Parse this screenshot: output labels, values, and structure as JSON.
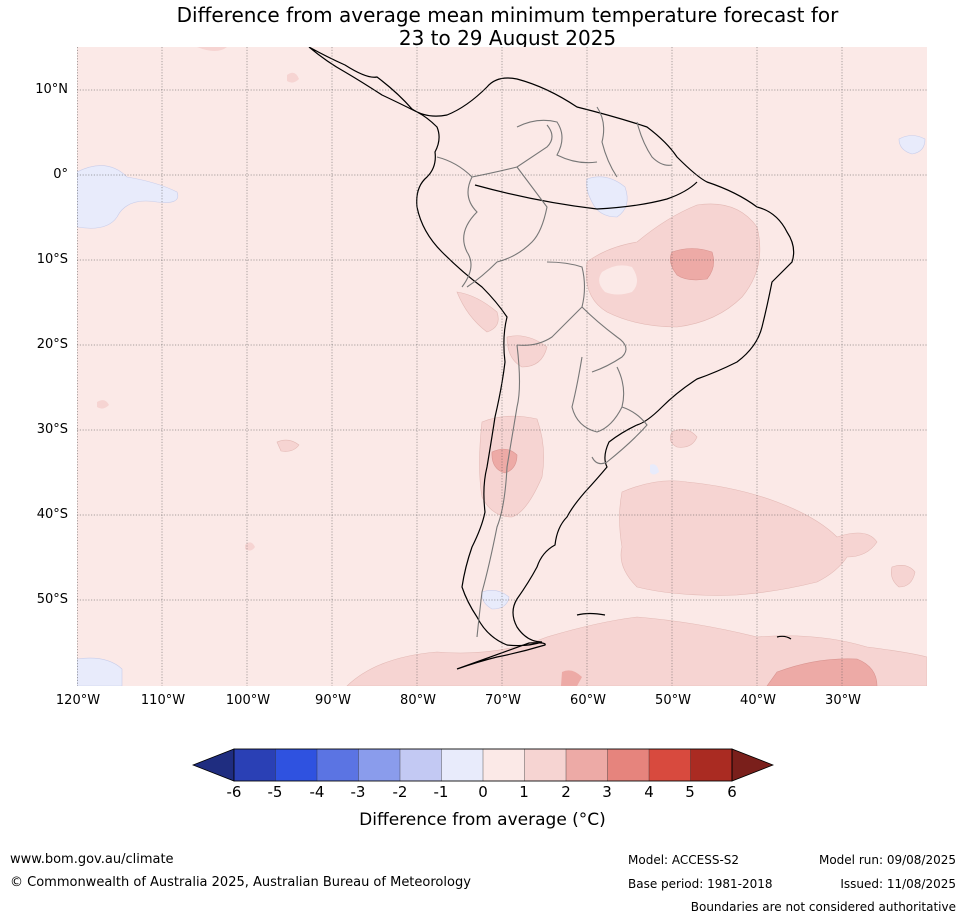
{
  "title_line1": "Difference from average mean minimum temperature forecast for",
  "title_line2": "23 to 29 August 2025",
  "lat_labels": [
    "10°N",
    "0°",
    "10°S",
    "20°S",
    "30°S",
    "40°S",
    "50°S"
  ],
  "lon_labels": [
    "120°W",
    "110°W",
    "100°W",
    "90°W",
    "80°W",
    "70°W",
    "60°W",
    "50°W",
    "40°W",
    "30°W"
  ],
  "colorbar": {
    "ticks": [
      "-6",
      "-5",
      "-4",
      "-3",
      "-2",
      "-1",
      "0",
      "1",
      "2",
      "3",
      "4",
      "5",
      "6"
    ],
    "colors": [
      "#1f2d80",
      "#2a40b5",
      "#2f52e0",
      "#5b74e3",
      "#8a9cec",
      "#c3c9f3",
      "#e8ebfb",
      "#fbe9e7",
      "#f6d4d2",
      "#edaaa6",
      "#e6847d",
      "#d84a3e",
      "#aa2b22",
      "#7a1f1b"
    ],
    "label": "Difference from average (°C)"
  },
  "map_colors": {
    "background": "#fbe9e7",
    "light_warm": "#f6d4d2",
    "warm": "#edaaa6",
    "cool": "#e8ebfb"
  },
  "footer": {
    "website": "www.bom.gov.au/climate",
    "copyright": "© Commonwealth of Australia 2025, Australian Bureau of Meteorology",
    "model": "Model: ACCESS-S2",
    "base_period": "Base period: 1981-2018",
    "model_run": "Model run: 09/08/2025",
    "issued": "Issued: 11/08/2025",
    "disclaimer": "Boundaries are not considered authoritative"
  }
}
